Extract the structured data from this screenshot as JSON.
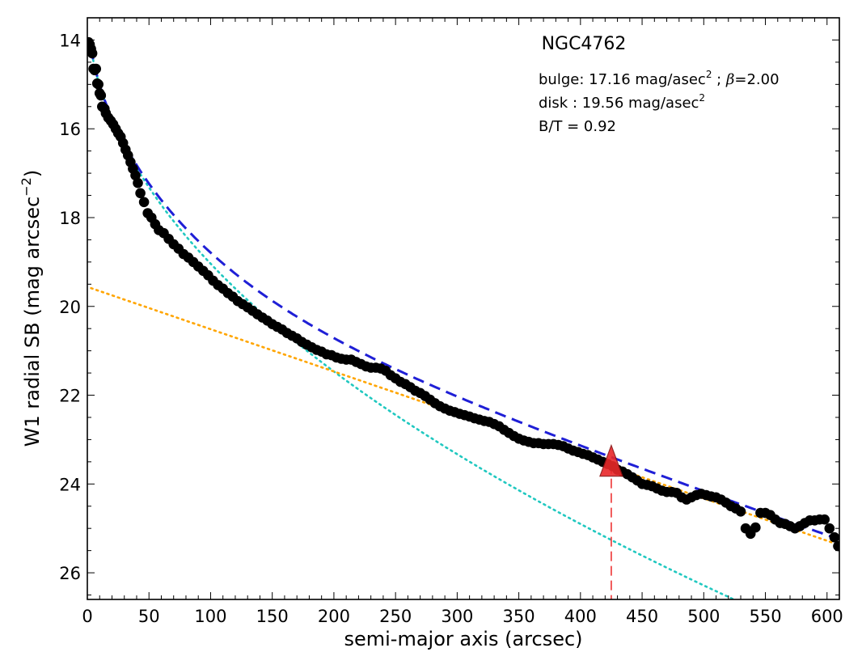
{
  "chart_data": {
    "type": "scatter",
    "title": "NGC4762",
    "annotations": {
      "bulge_prefix": "bulge: 17.16 mag/asec",
      "bulge_sup": "2",
      "bulge_mid": " ; ",
      "bulge_beta": "β",
      "bulge_suffix": "=2.00",
      "disk_prefix": "disk  : 19.56 mag/asec",
      "disk_sup": "2",
      "bt": "B/T = 0.92"
    },
    "xlabel": "semi-major axis (arcsec)",
    "ylabel_main": "W1 radial SB (mag arcsec",
    "ylabel_sup": "−2",
    "ylabel_close": ")",
    "xlim": [
      0,
      610
    ],
    "ylim": [
      26.6,
      13.5
    ],
    "y_inverted": true,
    "xticks": [
      0,
      50,
      100,
      150,
      200,
      250,
      300,
      350,
      400,
      450,
      500,
      550,
      600
    ],
    "yticks": [
      14,
      16,
      18,
      20,
      22,
      24,
      26
    ],
    "grid": false,
    "colors": {
      "points": "#000000",
      "total_fit": "#1f1fd6",
      "bulge_fit": "#20c8c0",
      "disk_fit": "#ffa500",
      "marker": "#e8282a",
      "marker_line": "#ee3333"
    },
    "bulge_model": {
      "mu_e": 17.16,
      "beta": 2.0
    },
    "disk_model": {
      "mu_0": 19.56,
      "slope": 0.00953
    },
    "marker_point": {
      "x": 425,
      "y": 23.55
    },
    "points": [
      [
        1,
        14.05
      ],
      [
        2,
        14.1
      ],
      [
        3,
        14.2
      ],
      [
        4,
        14.3
      ],
      [
        5,
        14.65
      ],
      [
        6,
        14.68
      ],
      [
        7,
        14.65
      ],
      [
        8,
        14.98
      ],
      [
        9,
        15.0
      ],
      [
        10,
        15.2
      ],
      [
        11,
        15.25
      ],
      [
        12,
        15.5
      ],
      [
        14,
        15.55
      ],
      [
        15,
        15.65
      ],
      [
        17,
        15.75
      ],
      [
        19,
        15.82
      ],
      [
        21,
        15.9
      ],
      [
        23,
        16.0
      ],
      [
        25,
        16.1
      ],
      [
        27,
        16.18
      ],
      [
        29,
        16.32
      ],
      [
        31,
        16.47
      ],
      [
        33,
        16.6
      ],
      [
        35,
        16.75
      ],
      [
        37,
        16.9
      ],
      [
        39,
        17.05
      ],
      [
        41,
        17.22
      ],
      [
        43,
        17.45
      ],
      [
        46,
        17.65
      ],
      [
        49,
        17.9
      ],
      [
        52,
        18.0
      ],
      [
        55,
        18.15
      ],
      [
        58,
        18.28
      ],
      [
        62,
        18.35
      ],
      [
        66,
        18.48
      ],
      [
        70,
        18.6
      ],
      [
        74,
        18.7
      ],
      [
        78,
        18.82
      ],
      [
        82,
        18.9
      ],
      [
        86,
        19.0
      ],
      [
        90,
        19.1
      ],
      [
        94,
        19.2
      ],
      [
        98,
        19.3
      ],
      [
        102,
        19.42
      ],
      [
        106,
        19.52
      ],
      [
        110,
        19.6
      ],
      [
        114,
        19.7
      ],
      [
        118,
        19.78
      ],
      [
        122,
        19.88
      ],
      [
        126,
        19.95
      ],
      [
        130,
        20.02
      ],
      [
        134,
        20.1
      ],
      [
        138,
        20.18
      ],
      [
        142,
        20.25
      ],
      [
        146,
        20.32
      ],
      [
        150,
        20.4
      ],
      [
        154,
        20.46
      ],
      [
        158,
        20.52
      ],
      [
        162,
        20.6
      ],
      [
        166,
        20.66
      ],
      [
        170,
        20.72
      ],
      [
        174,
        20.8
      ],
      [
        178,
        20.86
      ],
      [
        182,
        20.92
      ],
      [
        186,
        20.98
      ],
      [
        190,
        21.02
      ],
      [
        194,
        21.08
      ],
      [
        198,
        21.1
      ],
      [
        202,
        21.15
      ],
      [
        206,
        21.18
      ],
      [
        210,
        21.2
      ],
      [
        214,
        21.2
      ],
      [
        218,
        21.25
      ],
      [
        222,
        21.3
      ],
      [
        226,
        21.35
      ],
      [
        230,
        21.38
      ],
      [
        234,
        21.38
      ],
      [
        238,
        21.4
      ],
      [
        242,
        21.45
      ],
      [
        246,
        21.55
      ],
      [
        250,
        21.62
      ],
      [
        254,
        21.7
      ],
      [
        258,
        21.75
      ],
      [
        262,
        21.82
      ],
      [
        266,
        21.9
      ],
      [
        270,
        21.95
      ],
      [
        274,
        22.02
      ],
      [
        278,
        22.1
      ],
      [
        282,
        22.18
      ],
      [
        286,
        22.25
      ],
      [
        290,
        22.3
      ],
      [
        294,
        22.35
      ],
      [
        298,
        22.38
      ],
      [
        302,
        22.42
      ],
      [
        306,
        22.45
      ],
      [
        310,
        22.48
      ],
      [
        314,
        22.52
      ],
      [
        318,
        22.55
      ],
      [
        322,
        22.58
      ],
      [
        326,
        22.6
      ],
      [
        330,
        22.65
      ],
      [
        334,
        22.7
      ],
      [
        338,
        22.78
      ],
      [
        342,
        22.85
      ],
      [
        346,
        22.92
      ],
      [
        350,
        22.98
      ],
      [
        354,
        23.02
      ],
      [
        358,
        23.05
      ],
      [
        362,
        23.08
      ],
      [
        366,
        23.08
      ],
      [
        370,
        23.1
      ],
      [
        374,
        23.1
      ],
      [
        378,
        23.1
      ],
      [
        382,
        23.12
      ],
      [
        386,
        23.15
      ],
      [
        390,
        23.2
      ],
      [
        394,
        23.25
      ],
      [
        398,
        23.28
      ],
      [
        402,
        23.32
      ],
      [
        406,
        23.35
      ],
      [
        410,
        23.4
      ],
      [
        414,
        23.45
      ],
      [
        418,
        23.5
      ],
      [
        422,
        23.55
      ],
      [
        426,
        23.6
      ],
      [
        430,
        23.68
      ],
      [
        434,
        23.72
      ],
      [
        438,
        23.78
      ],
      [
        442,
        23.85
      ],
      [
        446,
        23.92
      ],
      [
        450,
        24.0
      ],
      [
        454,
        24.02
      ],
      [
        458,
        24.05
      ],
      [
        462,
        24.1
      ],
      [
        466,
        24.15
      ],
      [
        470,
        24.18
      ],
      [
        474,
        24.18
      ],
      [
        478,
        24.2
      ],
      [
        482,
        24.3
      ],
      [
        486,
        24.35
      ],
      [
        490,
        24.3
      ],
      [
        494,
        24.25
      ],
      [
        498,
        24.22
      ],
      [
        502,
        24.25
      ],
      [
        506,
        24.28
      ],
      [
        510,
        24.3
      ],
      [
        514,
        24.35
      ],
      [
        518,
        24.42
      ],
      [
        522,
        24.5
      ],
      [
        526,
        24.55
      ],
      [
        530,
        24.62
      ],
      [
        534,
        25.0
      ],
      [
        538,
        25.12
      ],
      [
        542,
        24.98
      ],
      [
        546,
        24.65
      ],
      [
        550,
        24.65
      ],
      [
        554,
        24.7
      ],
      [
        558,
        24.8
      ],
      [
        562,
        24.88
      ],
      [
        566,
        24.9
      ],
      [
        570,
        24.95
      ],
      [
        574,
        25.0
      ],
      [
        578,
        24.95
      ],
      [
        582,
        24.88
      ],
      [
        586,
        24.82
      ],
      [
        590,
        24.82
      ],
      [
        594,
        24.8
      ],
      [
        598,
        24.8
      ],
      [
        602,
        25.0
      ],
      [
        606,
        25.2
      ],
      [
        609,
        25.4
      ]
    ]
  }
}
